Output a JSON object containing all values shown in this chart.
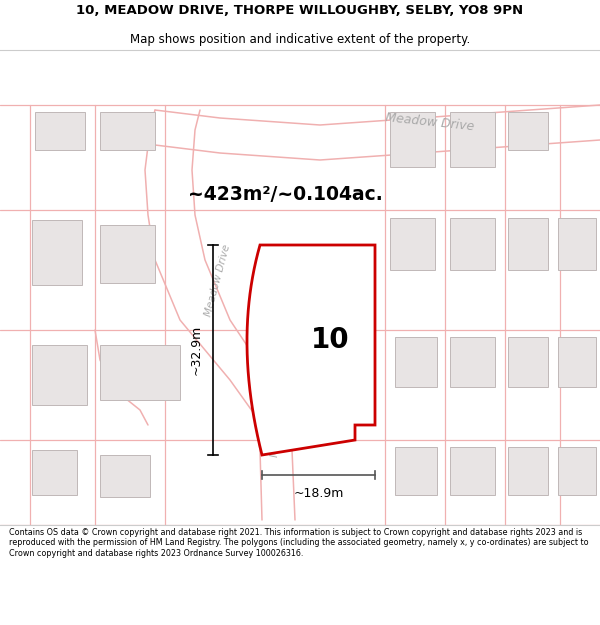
{
  "title_line1": "10, MEADOW DRIVE, THORPE WILLOUGHBY, SELBY, YO8 9PN",
  "title_line2": "Map shows position and indicative extent of the property.",
  "area_label": "~423m²/~0.104ac.",
  "plot_number": "10",
  "dim_height": "~32.9m",
  "dim_width": "~18.9m",
  "road_label_diag": "Meadow Drive",
  "road_label_vert": "Meadow Drive",
  "road_label_top": "Meadow Drive",
  "footer": "Contains OS data © Crown copyright and database right 2021. This information is subject to Crown copyright and database rights 2023 and is reproduced with the permission of HM Land Registry. The polygons (including the associated geometry, namely x, y co-ordinates) are subject to Crown copyright and database rights 2023 Ordnance Survey 100026316.",
  "bg_color": "#ffffff",
  "plot_fill": "#ffffff",
  "plot_outline": "#cc0000",
  "road_line_color": "#f0b0b0",
  "building_fill": "#e8e4e4",
  "building_edge": "#c0b8b8",
  "title_fontsize": 9.5,
  "subtitle_fontsize": 8.5,
  "footer_fontsize": 5.8
}
